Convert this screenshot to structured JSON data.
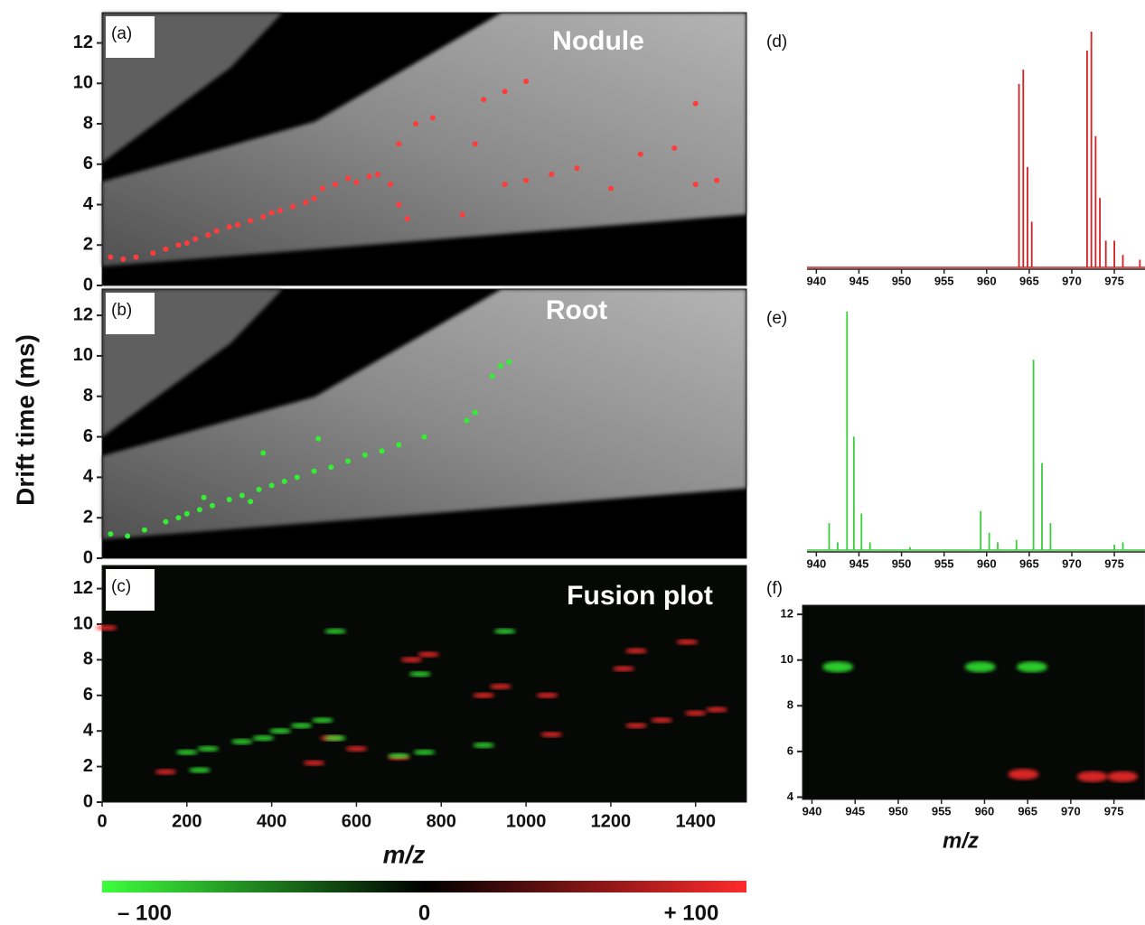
{
  "ylabel": "Drift time (ms)",
  "colorbar": {
    "lim": [
      -100,
      100
    ],
    "ticks": [
      {
        "value": -100,
        "label": "– 100"
      },
      0,
      {
        "value": 100,
        "label": "+ 100"
      }
    ]
  },
  "chart_data": [
    {
      "type": "scatter",
      "panel": "(a)",
      "title": "Nodule",
      "xlim": [
        0,
        1520
      ],
      "ylim": [
        0,
        13.5
      ],
      "yticks": [
        0,
        2,
        4,
        6,
        8,
        10,
        12
      ],
      "series": [
        {
          "color": "#ff3b3b",
          "x": [
            20,
            50,
            80,
            120,
            150,
            180,
            200,
            220,
            250,
            270,
            300,
            320,
            350,
            380,
            400,
            420,
            450,
            480,
            500,
            520,
            550,
            580,
            600,
            630,
            650,
            680,
            700,
            720,
            740,
            780,
            700,
            850,
            900,
            950,
            1000,
            880,
            950,
            1000,
            1060,
            1120,
            1270,
            1350,
            1400,
            1450,
            1400,
            1200
          ],
          "values": [
            1.4,
            1.3,
            1.4,
            1.6,
            1.8,
            2.0,
            2.1,
            2.3,
            2.5,
            2.7,
            2.9,
            3.0,
            3.2,
            3.4,
            3.6,
            3.7,
            3.9,
            4.1,
            4.3,
            4.8,
            5.0,
            5.3,
            5.1,
            5.4,
            5.5,
            5.0,
            4.0,
            3.3,
            8.0,
            8.3,
            7.0,
            3.5,
            9.2,
            9.6,
            10.1,
            7.0,
            5.0,
            5.2,
            5.5,
            5.8,
            6.5,
            6.8,
            5.0,
            5.2,
            9.0,
            4.8
          ]
        }
      ]
    },
    {
      "type": "scatter",
      "panel": "(b)",
      "title": "Root",
      "xlim": [
        0,
        1520
      ],
      "ylim": [
        0,
        13.3
      ],
      "yticks": [
        0,
        2,
        4,
        6,
        8,
        10,
        12
      ],
      "series": [
        {
          "color": "#33ee33",
          "x": [
            20,
            60,
            100,
            150,
            180,
            200,
            230,
            260,
            300,
            330,
            370,
            400,
            430,
            460,
            500,
            540,
            580,
            620,
            660,
            700,
            760,
            860,
            880,
            920,
            940,
            960,
            380,
            510,
            240,
            350
          ],
          "values": [
            1.2,
            1.1,
            1.4,
            1.8,
            2.0,
            2.2,
            2.4,
            2.6,
            2.9,
            3.1,
            3.4,
            3.6,
            3.8,
            4.0,
            4.3,
            4.5,
            4.8,
            5.1,
            5.3,
            5.6,
            6.0,
            6.8,
            7.2,
            9.0,
            9.5,
            9.7,
            5.2,
            5.9,
            3.0,
            2.8
          ]
        }
      ]
    },
    {
      "type": "heatmap",
      "panel": "(c)",
      "title": "Fusion plot",
      "xlabel": "m/z",
      "xlim": [
        0,
        1520
      ],
      "ylim": [
        0,
        13.3
      ],
      "yticks": [
        0,
        2,
        4,
        6,
        8,
        10,
        12
      ],
      "xticks": [
        0,
        200,
        400,
        600,
        800,
        1000,
        1200,
        1400
      ],
      "series": [
        {
          "color": "#ff2a2a",
          "x": [
            10,
            730,
            770,
            900,
            940,
            1050,
            1060,
            1260,
            1320,
            1400,
            1450,
            1260,
            1380,
            1230,
            540,
            600,
            700,
            500,
            150
          ],
          "values": [
            9.8,
            8.0,
            8.3,
            6.0,
            6.5,
            6.0,
            3.8,
            4.3,
            4.6,
            5.0,
            5.2,
            8.5,
            9.0,
            7.5,
            3.6,
            3.0,
            2.5,
            2.2,
            1.7
          ]
        },
        {
          "color": "#33ee33",
          "x": [
            200,
            250,
            330,
            380,
            420,
            470,
            520,
            550,
            700,
            760,
            900,
            950,
            550,
            750,
            230
          ],
          "values": [
            2.8,
            3.0,
            3.4,
            3.6,
            4.0,
            4.3,
            4.6,
            3.6,
            2.6,
            2.8,
            3.2,
            9.6,
            9.6,
            7.2,
            1.8
          ]
        }
      ]
    },
    {
      "type": "stem",
      "panel": "(d)",
      "xlim": [
        938.9,
        978.6
      ],
      "ylim": [
        0,
        100
      ],
      "xticks": [
        940,
        945,
        950,
        955,
        960,
        965,
        970,
        975
      ],
      "series": [
        {
          "color": "#d42020",
          "x": [
            963.8,
            964.3,
            964.8,
            965.3,
            971.8,
            972.3,
            972.8,
            973.3,
            974,
            975,
            976,
            978
          ],
          "values": [
            78,
            84,
            43,
            20,
            92,
            100,
            56,
            30,
            12,
            12,
            6,
            4
          ]
        }
      ]
    },
    {
      "type": "stem",
      "panel": "(e)",
      "xlim": [
        938.9,
        978.6
      ],
      "ylim": [
        0,
        100
      ],
      "xticks": [
        940,
        945,
        950,
        955,
        960,
        965,
        970,
        975
      ],
      "series": [
        {
          "color": "#3ccc3c",
          "x": [
            941.5,
            942.5,
            943.6,
            944.4,
            945.3,
            946.3,
            951,
            959.3,
            960.3,
            961.3,
            963.5,
            965.5,
            966.5,
            967.5,
            975,
            976
          ],
          "values": [
            12,
            4,
            100,
            48,
            16,
            4,
            2,
            17,
            8,
            4,
            5,
            80,
            37,
            12,
            3,
            4
          ]
        }
      ]
    },
    {
      "type": "heatmap",
      "panel": "(f)",
      "xlabel": "m/z",
      "xlim": [
        938.9,
        978.6
      ],
      "ylim": [
        3.9,
        12.4
      ],
      "yticks": [
        4,
        6,
        8,
        10,
        12
      ],
      "xticks": [
        940,
        945,
        950,
        955,
        960,
        965,
        970,
        975
      ],
      "series": [
        {
          "color": "#33ee33",
          "x": [
            943,
            959.5,
            965.5
          ],
          "values": [
            9.7,
            9.7,
            9.7
          ]
        },
        {
          "color": "#ff2a2a",
          "x": [
            964.5,
            972.5,
            976
          ],
          "values": [
            5.0,
            4.9,
            4.9
          ]
        }
      ]
    }
  ]
}
